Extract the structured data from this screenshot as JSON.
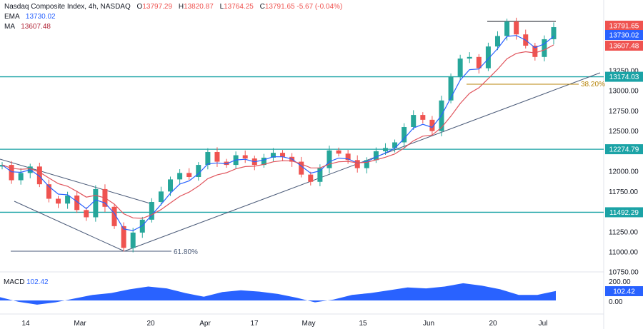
{
  "header": {
    "symbol": "Nasdaq Composite Index, 4h, NASDAQ",
    "o_label": "O",
    "o": "13797.29",
    "h_label": "H",
    "h": "13820.87",
    "l_label": "L",
    "l": "13764.25",
    "c_label": "C",
    "c": "13791.65",
    "change": "-5.67 (-0.04%)",
    "ema_label": "EMA",
    "ema": "13730.02",
    "ma_label": "MA",
    "ma": "13607.48"
  },
  "colors": {
    "up": "#26a69a",
    "down": "#ef5350",
    "ema": "#2962ff",
    "ma": "#e0545c",
    "level": "#1ba3a6",
    "trend": "#4a5a78",
    "fib38": "#b8860b",
    "fib61": "#4a5a78",
    "macd": "#2962ff"
  },
  "chart_data": [
    {
      "type": "line",
      "title": "Nasdaq Composite Index, 4h, NASDAQ",
      "x_tick_labels": [
        "14",
        "Mar",
        "20",
        "Apr",
        "17",
        "May",
        "15",
        "Jun",
        "20",
        "Jul"
      ],
      "y_tick_labels": [
        "13250.00",
        "13000.00",
        "12750.00",
        "12500.00",
        "12250.00",
        "12000.00",
        "11750.00",
        "11500.00",
        "11250.00",
        "11000.00",
        "10750.00"
      ],
      "ylim": [
        10750,
        13980
      ],
      "price_close_path": [
        12080,
        11890,
        11980,
        12060,
        11840,
        11660,
        11600,
        11700,
        11520,
        11430,
        11780,
        11560,
        11320,
        11050,
        11240,
        11400,
        11620,
        11750,
        11900,
        11980,
        11930,
        12080,
        12240,
        12120,
        12080,
        12200,
        12160,
        12080,
        12170,
        12230,
        12180,
        12120,
        11960,
        11870,
        12040,
        12260,
        12220,
        12140,
        12040,
        12140,
        12250,
        12290,
        12360,
        12550,
        12700,
        12640,
        12500,
        12880,
        13180,
        13400,
        13420,
        13280,
        13550,
        13680,
        13860,
        13700,
        13560,
        13420,
        13640,
        13790
      ],
      "series": [
        {
          "name": "EMA",
          "last": 13730.02
        },
        {
          "name": "MA",
          "last": 13607.48
        }
      ],
      "horizontal_levels": [
        13174.03,
        12274.79,
        11492.29
      ],
      "price_labels": [
        "13791.65",
        "13730.02",
        "13607.48",
        "13174.03",
        "12274.79",
        "11492.29"
      ],
      "annotations": [
        "38.20%",
        "61.80%"
      ]
    },
    {
      "type": "area",
      "title": "MACD",
      "series": [
        {
          "name": "MACD",
          "last": 102.42
        }
      ],
      "y_tick_labels": [
        "200.00",
        "0.00"
      ],
      "value_label": "102.42",
      "values": [
        35,
        -15,
        -45,
        -20,
        20,
        60,
        80,
        120,
        150,
        130,
        80,
        40,
        90,
        110,
        95,
        70,
        30,
        -20,
        10,
        60,
        80,
        110,
        140,
        130,
        150,
        185,
        160,
        120,
        60,
        60,
        102
      ]
    }
  ]
}
